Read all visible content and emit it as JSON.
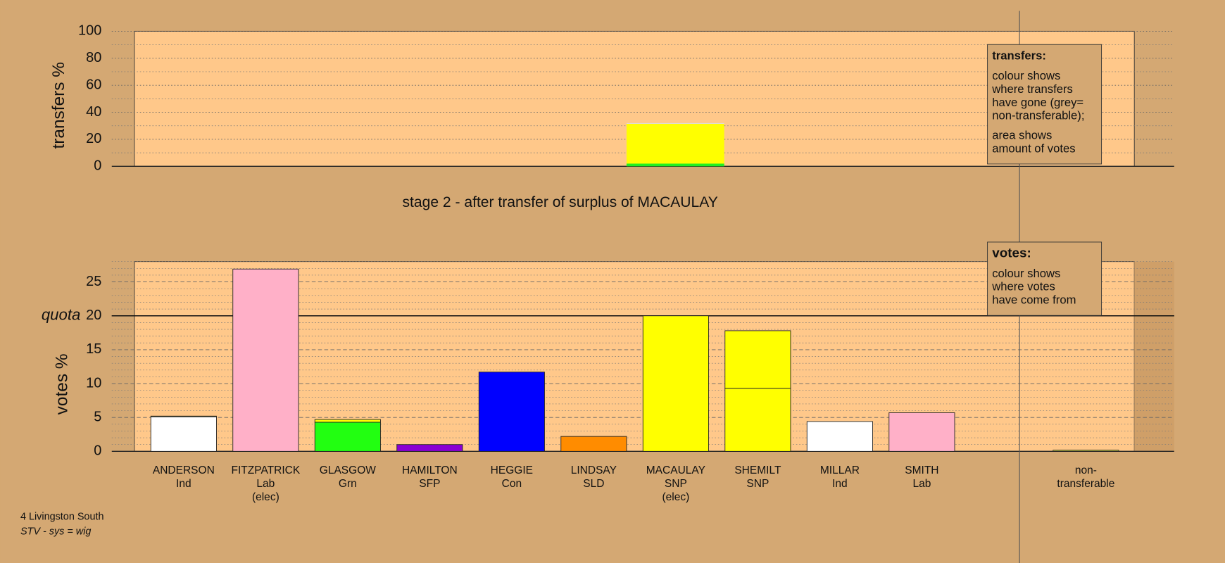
{
  "chart_data": [
    {
      "type": "stacked-bar",
      "ylabel": "transfers %",
      "ylim": [
        0,
        100
      ],
      "yticks": [
        0,
        20,
        40,
        60,
        80,
        100
      ],
      "yminorticks": [
        10,
        30,
        50,
        70,
        90
      ],
      "series": [
        {
          "color": "#22ee22",
          "values": [
            2
          ]
        },
        {
          "color": "#ffff00",
          "values": [
            29.5
          ]
        },
        {
          "color": "#dddddd",
          "values": [
            0.5
          ]
        }
      ],
      "legend": {
        "title": "transfers:",
        "lines": [
          "colour shows",
          "where transfers",
          "have gone (grey=",
          "non-transferable);",
          "area shows",
          "amount of votes"
        ]
      }
    },
    {
      "type": "stacked-bar",
      "title": "stage 2 - after transfer of surplus of MACAULAY",
      "ylabel": "votes %",
      "ylim": [
        0,
        28
      ],
      "yticks": [
        0,
        5,
        10,
        15,
        20,
        25
      ],
      "yminorticks": [
        1,
        2,
        3,
        4,
        6,
        7,
        8,
        9,
        11,
        12,
        13,
        14,
        16,
        17,
        18,
        19,
        21,
        22,
        23,
        24,
        26,
        27,
        28
      ],
      "quota": {
        "value": 20,
        "label": "quota"
      },
      "categories": [
        "ANDERSON",
        "FITZPATRICK",
        "GLASGOW",
        "HAMILTON",
        "HEGGIE",
        "LINDSAY",
        "MACAULAY",
        "SHEMILT",
        "MILLAR",
        "SMITH"
      ],
      "parties": [
        "Ind",
        "Lab",
        "Grn",
        "SFP",
        "Con",
        "SLD",
        "SNP",
        "SNP",
        "Ind",
        "Lab"
      ],
      "notes": [
        null,
        "(elec)",
        null,
        null,
        null,
        null,
        "(elec)",
        null,
        null,
        null
      ],
      "colors": [
        "#ffffff",
        "#ffb0c8",
        "#22ff11",
        "#8a00d4",
        "#0000ff",
        "#ff8c00",
        "#ffff00",
        "#ffff00",
        "#ffffff",
        "#ffb0c8"
      ],
      "series": [
        {
          "values": [
            5.1,
            26.9,
            4.3,
            1.0,
            11.7,
            2.2,
            20.0,
            9.3,
            4.4,
            5.7
          ]
        },
        {
          "color": "#ffff00",
          "values": [
            0.1,
            0,
            0.4,
            0,
            0,
            0,
            0,
            8.5,
            0,
            0
          ]
        }
      ],
      "nontransferable": {
        "label": [
          "non-",
          "transferable"
        ],
        "value": 0.2,
        "color": "#a0a040"
      },
      "legend": {
        "title": "votes:",
        "lines": [
          "colour shows",
          "where votes",
          "have come from"
        ]
      }
    }
  ],
  "footer": [
    "4 Livingston South",
    "STV - sys = wig"
  ]
}
